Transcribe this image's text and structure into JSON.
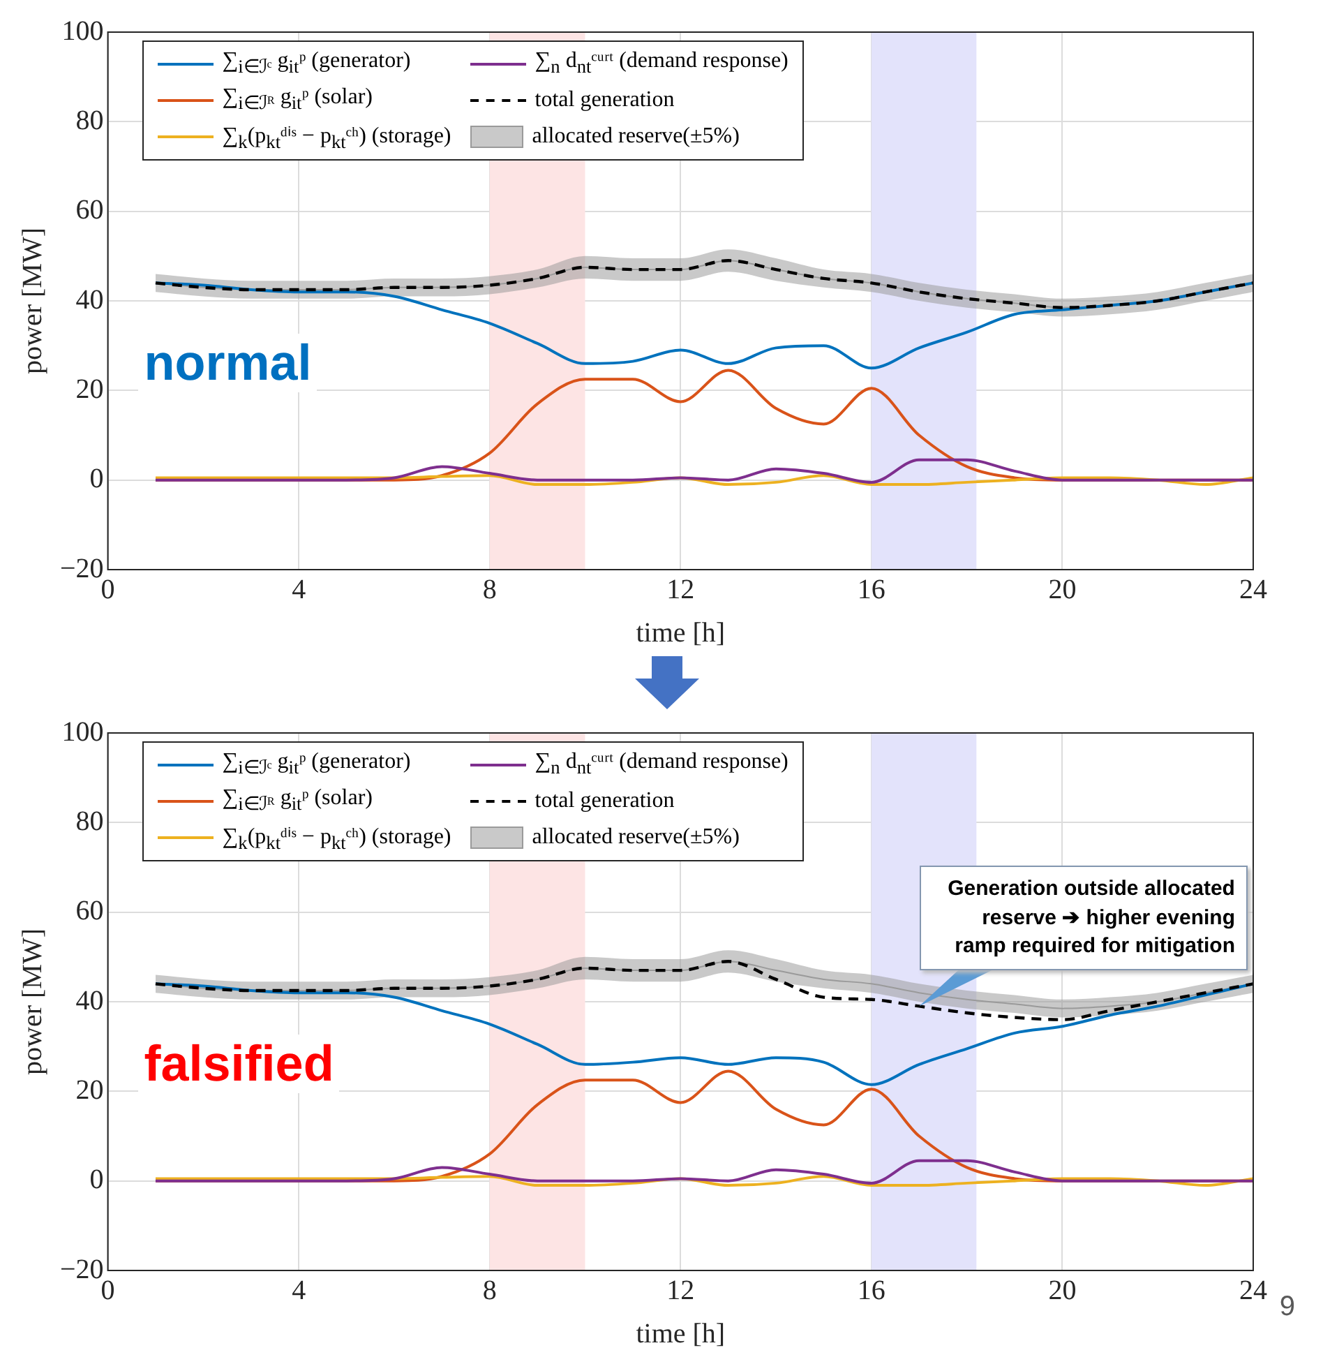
{
  "chart_data": [
    {
      "type": "line",
      "annotations": [
        "normal"
      ],
      "xlabel": "time [h]",
      "ylabel": "power [MW]",
      "x": [
        1,
        2,
        3,
        4,
        5,
        6,
        7,
        8,
        9,
        10,
        11,
        12,
        13,
        14,
        15,
        16,
        17,
        18,
        19,
        20,
        21,
        22,
        23,
        24
      ],
      "xlim": [
        0,
        24
      ],
      "xticks": [
        0,
        4,
        8,
        12,
        16,
        20,
        24
      ],
      "ylim": [
        -20,
        100
      ],
      "yticks": [
        {
          "value": -20,
          "label": "−20"
        },
        0,
        20,
        40,
        60,
        80,
        100
      ],
      "grid": true,
      "legend": "top left",
      "marker": "none",
      "bands": [
        {
          "axis": "x",
          "from": 8,
          "to": 10,
          "color": "#fde4e4"
        },
        {
          "axis": "x",
          "from": 16,
          "to": 18.2,
          "color": "#e3e3fb"
        }
      ],
      "series": [
        {
          "name": "∑$_{i∈ℐᶜ}$ g$_{it}$ᵖ (generator)",
          "color": "#0072bd",
          "values": [
            44,
            43.5,
            42.5,
            42,
            42,
            41,
            38,
            35,
            30.5,
            26,
            26.5,
            29,
            26,
            29.5,
            30,
            25,
            29.5,
            33,
            37,
            38,
            39,
            40,
            42,
            44
          ]
        },
        {
          "name": "∑$_{i∈ℐᴿ}$ g$_{it}$ᵖ (solar)",
          "color": "#d95319",
          "values": [
            0,
            0,
            0,
            0,
            0,
            0,
            1,
            6,
            17,
            22.5,
            22.5,
            17.5,
            24.5,
            16,
            12.5,
            20.5,
            10,
            3,
            0.5,
            0,
            0,
            0,
            0,
            0
          ]
        },
        {
          "name": "∑$_{k}$(p$_{kt}$ᵈⁱˢ − p$_{kt}$ᶜʰ) (storage)",
          "color": "#edb120",
          "values": [
            0.5,
            0.5,
            0.5,
            0.5,
            0.5,
            0.5,
            0.8,
            1,
            -1,
            -1,
            -0.5,
            0.5,
            -1,
            -0.5,
            1,
            -1,
            -1,
            -0.5,
            0,
            0.5,
            0.5,
            0,
            -1,
            0.5
          ]
        },
        {
          "name": "∑$_{n}$ d$_{nt}$ᶜᵘʳᵗ (demand response)",
          "color": "#7e2f8e",
          "values": [
            0,
            0,
            0,
            0,
            0,
            0.5,
            3,
            1.5,
            0,
            0,
            0,
            0.5,
            0,
            2.5,
            1.5,
            -0.5,
            4.5,
            4.5,
            2,
            0,
            0,
            0,
            0,
            0
          ]
        },
        {
          "name": "total generation",
          "color": "#000000",
          "line_style": "dashed",
          "values": [
            44,
            43,
            42.5,
            42.5,
            42.5,
            43,
            43,
            43.5,
            45,
            47.5,
            47,
            47,
            49,
            47,
            45,
            44,
            42,
            40.5,
            39.5,
            38.5,
            39,
            40,
            42,
            44
          ]
        },
        {
          "name": "allocated reserve(±5%)",
          "type": "line",
          "color": "#9a9a9a",
          "values": [
            44,
            43,
            42.5,
            42.5,
            42.5,
            43,
            43,
            43.5,
            45,
            47.5,
            47,
            47,
            49,
            47,
            45,
            44,
            42,
            40.5,
            39.5,
            38.5,
            39,
            40,
            42,
            44
          ],
          "lower": [
            42,
            41,
            40.5,
            40.5,
            40.5,
            41,
            41,
            41.5,
            43,
            45,
            44.5,
            44.5,
            46.5,
            44.5,
            43,
            42,
            40,
            38.5,
            37.5,
            36.5,
            37,
            38,
            40,
            42
          ],
          "upper": [
            46,
            45,
            44.5,
            44.5,
            44.5,
            45,
            45,
            45.5,
            47,
            50,
            49.5,
            49.5,
            51.5,
            49.5,
            47,
            46,
            44,
            42.5,
            41.5,
            40.5,
            41,
            42,
            44,
            46
          ]
        }
      ]
    },
    {
      "type": "line",
      "annotations": [
        "falsified",
        {
          "text": "Generation outside allocated reserve ➔ higher evening ramp required for mitigation",
          "x": 17,
          "y": 39
        },
        "9"
      ],
      "xlabel": "time [h]",
      "ylabel": "power [MW]",
      "x": [
        1,
        2,
        3,
        4,
        5,
        6,
        7,
        8,
        9,
        10,
        11,
        12,
        13,
        14,
        15,
        16,
        17,
        18,
        19,
        20,
        21,
        22,
        23,
        24
      ],
      "xlim": [
        0,
        24
      ],
      "xticks": [
        0,
        4,
        8,
        12,
        16,
        20,
        24
      ],
      "ylim": [
        -20,
        100
      ],
      "yticks": [
        {
          "value": -20,
          "label": "−20"
        },
        0,
        20,
        40,
        60,
        80,
        100
      ],
      "grid": true,
      "legend": "top left",
      "marker": "none",
      "bands": [
        {
          "axis": "x",
          "from": 8,
          "to": 10,
          "color": "#fde4e4"
        },
        {
          "axis": "x",
          "from": 16,
          "to": 18.2,
          "color": "#e3e3fb"
        }
      ],
      "series": [
        {
          "name": "∑$_{i∈ℐᶜ}$ g$_{it}$ᵖ (generator)",
          "color": "#0072bd",
          "values": [
            44,
            43.5,
            42.5,
            42,
            42,
            41,
            38,
            35,
            30.5,
            26,
            26.5,
            27.5,
            26,
            27.5,
            26.5,
            21.5,
            26,
            29.5,
            33,
            34.5,
            37,
            39,
            41.5,
            44
          ]
        },
        {
          "name": "∑$_{i∈ℐᴿ}$ g$_{it}$ᵖ (solar)",
          "color": "#d95319",
          "values": [
            0,
            0,
            0,
            0,
            0,
            0,
            1,
            6,
            17,
            22.5,
            22.5,
            17.5,
            24.5,
            16,
            12.5,
            20.5,
            10,
            3,
            0.5,
            0,
            0,
            0,
            0,
            0
          ]
        },
        {
          "name": "∑$_{k}$(p$_{kt}$ᵈⁱˢ − p$_{kt}$ᶜʰ) (storage)",
          "color": "#edb120",
          "values": [
            0.5,
            0.5,
            0.5,
            0.5,
            0.5,
            0.5,
            0.8,
            1,
            -1,
            -1,
            -0.5,
            0.5,
            -1,
            -0.5,
            1,
            -1,
            -1,
            -0.5,
            0,
            0.5,
            0.5,
            0,
            -1,
            0.5
          ]
        },
        {
          "name": "∑$_{n}$ d$_{nt}$ᶜᵘʳᵗ (demand response)",
          "color": "#7e2f8e",
          "values": [
            0,
            0,
            0,
            0,
            0,
            0.5,
            3,
            1.5,
            0,
            0,
            0,
            0.5,
            0,
            2.5,
            1.5,
            -0.5,
            4.5,
            4.5,
            2,
            0,
            0,
            0,
            0,
            0
          ]
        },
        {
          "name": "total generation",
          "color": "#000000",
          "line_style": "dashed",
          "values": [
            44,
            43,
            42.5,
            42.5,
            42.5,
            43,
            43,
            43.5,
            45,
            47.5,
            47,
            47,
            49,
            45,
            41,
            40.5,
            39,
            37.5,
            36.5,
            36,
            38,
            40,
            42,
            44
          ]
        },
        {
          "name": "allocated reserve(±5%)",
          "type": "line",
          "color": "#9a9a9a",
          "values": [
            44,
            43,
            42.5,
            42.5,
            42.5,
            43,
            43,
            43.5,
            45,
            47.5,
            47,
            47,
            49,
            47,
            45,
            44,
            42,
            40.5,
            39.5,
            38.5,
            39,
            40,
            42,
            44
          ],
          "lower": [
            42,
            41,
            40.5,
            40.5,
            40.5,
            41,
            41,
            41.5,
            43,
            45,
            44.5,
            44.5,
            46.5,
            44.5,
            43,
            42,
            40,
            38.5,
            37.5,
            36.5,
            37,
            38,
            40,
            42
          ],
          "upper": [
            46,
            45,
            44.5,
            44.5,
            44.5,
            45,
            45,
            45.5,
            47,
            50,
            49.5,
            49.5,
            51.5,
            49.5,
            47,
            46,
            44,
            42.5,
            41.5,
            40.5,
            41,
            42,
            44,
            46
          ]
        }
      ]
    }
  ]
}
